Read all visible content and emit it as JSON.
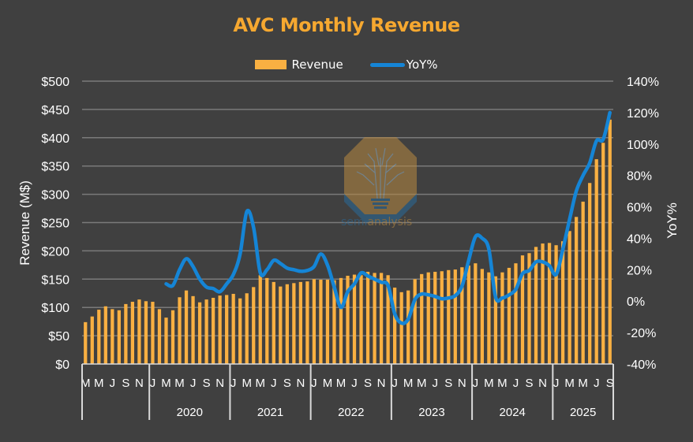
{
  "chart_data": {
    "type": "bar+line",
    "title": "AVC Monthly Revenue",
    "ylabel": "Revenue (M$)",
    "y2label": "YoY%",
    "ylim": [
      0,
      500
    ],
    "y2lim": [
      -40,
      140
    ],
    "yticks": [
      "$0",
      "$50",
      "$100",
      "$150",
      "$200",
      "$250",
      "$300",
      "$350",
      "$400",
      "$450",
      "$500"
    ],
    "y2ticks": [
      "-40%",
      "-20%",
      "0%",
      "20%",
      "40%",
      "60%",
      "80%",
      "100%",
      "120%",
      "140%"
    ],
    "grid": true,
    "legend_position": "top",
    "colors": {
      "revenue": "#F9B042",
      "yoy": "#1585D6",
      "title": "#F6A830",
      "background": "#404040",
      "grid": "#7A7A7A"
    },
    "year_groups": [
      {
        "label": "",
        "months": 10
      },
      {
        "label": "2020",
        "months": 12
      },
      {
        "label": "2021",
        "months": 12
      },
      {
        "label": "2022",
        "months": 12
      },
      {
        "label": "2023",
        "months": 12
      },
      {
        "label": "2024",
        "months": 12
      },
      {
        "label": "2025",
        "months": 9
      }
    ],
    "x": [
      "Mar-19",
      "Apr-19",
      "May-19",
      "Jun-19",
      "Jul-19",
      "Aug-19",
      "Sep-19",
      "Oct-19",
      "Nov-19",
      "Dec-19",
      "Jan-20",
      "Feb-20",
      "Mar-20",
      "Apr-20",
      "May-20",
      "Jun-20",
      "Jul-20",
      "Aug-20",
      "Sep-20",
      "Oct-20",
      "Nov-20",
      "Dec-20",
      "Jan-21",
      "Feb-21",
      "Mar-21",
      "Apr-21",
      "May-21",
      "Jun-21",
      "Jul-21",
      "Aug-21",
      "Sep-21",
      "Oct-21",
      "Nov-21",
      "Dec-21",
      "Jan-22",
      "Feb-22",
      "Mar-22",
      "Apr-22",
      "May-22",
      "Jun-22",
      "Jul-22",
      "Aug-22",
      "Sep-22",
      "Oct-22",
      "Nov-22",
      "Dec-22",
      "Jan-23",
      "Feb-23",
      "Mar-23",
      "Apr-23",
      "May-23",
      "Jun-23",
      "Jul-23",
      "Aug-23",
      "Sep-23",
      "Oct-23",
      "Nov-23",
      "Dec-23",
      "Jan-24",
      "Feb-24",
      "Mar-24",
      "Apr-24",
      "May-24",
      "Jun-24",
      "Jul-24",
      "Aug-24",
      "Sep-24",
      "Oct-24",
      "Nov-24",
      "Dec-24",
      "Jan-25",
      "Feb-25",
      "Mar-25",
      "Apr-25",
      "May-25",
      "Jun-25",
      "Jul-25",
      "Aug-25",
      "Sep-25"
    ],
    "month_tick_labels": [
      "M",
      "",
      "M",
      "",
      "J",
      "",
      "S",
      "",
      "N",
      "",
      "J",
      "",
      "M",
      "",
      "M",
      "",
      "J",
      "",
      "S",
      "",
      "N",
      "",
      "J",
      "",
      "M",
      "",
      "M",
      "",
      "J",
      "",
      "S",
      "",
      "N",
      "",
      "J",
      "",
      "M",
      "",
      "M",
      "",
      "J",
      "",
      "S",
      "",
      "N",
      "",
      "J",
      "",
      "M",
      "",
      "M",
      "",
      "J",
      "",
      "S",
      "",
      "N",
      "",
      "J",
      "",
      "M",
      "",
      "M",
      "",
      "J",
      "",
      "S",
      "",
      "N",
      "",
      "J",
      "",
      "M",
      "",
      "M",
      "",
      "J",
      "",
      "S"
    ],
    "series": [
      {
        "name": "Revenue",
        "type": "bar",
        "axis": "left",
        "values": [
          74,
          84,
          96,
          102,
          97,
          95,
          106,
          110,
          114,
          111,
          110,
          97,
          82,
          95,
          118,
          130,
          120,
          109,
          114,
          117,
          121,
          122,
          124,
          116,
          125,
          136,
          157,
          152,
          145,
          137,
          141,
          143,
          145,
          146,
          150,
          149,
          149,
          148,
          152,
          156,
          158,
          157,
          163,
          161,
          161,
          157,
          135,
          127,
          130,
          150,
          159,
          162,
          163,
          164,
          166,
          167,
          171,
          174,
          178,
          168,
          162,
          155,
          162,
          170,
          178,
          192,
          196,
          207,
          213,
          214,
          210,
          217,
          235,
          260,
          287,
          320,
          362,
          391,
          432
        ]
      },
      {
        "name": "YoY%",
        "type": "line",
        "axis": "right",
        "values": [
          null,
          null,
          null,
          null,
          null,
          null,
          null,
          null,
          null,
          null,
          null,
          null,
          11,
          10,
          20,
          27,
          22,
          14,
          9,
          8,
          6,
          11,
          17,
          30,
          57,
          47,
          18,
          20,
          26,
          24,
          21,
          20,
          19,
          19.5,
          22,
          30,
          23,
          9,
          -4,
          6,
          11,
          18,
          16,
          14,
          12,
          10,
          -8,
          -14,
          -11.5,
          1,
          4.5,
          4,
          3,
          1.5,
          2,
          3.5,
          9.5,
          26,
          41,
          40,
          33,
          2.5,
          2,
          4,
          7.5,
          17.5,
          19.5,
          25,
          25,
          22.5,
          17,
          33,
          52,
          70,
          80,
          88,
          102,
          103,
          120
        ]
      }
    ]
  },
  "legend": {
    "revenue_label": "Revenue",
    "yoy_label": "YoY%"
  },
  "watermark": {
    "text_left": "semi",
    "text_right": "analysis"
  }
}
